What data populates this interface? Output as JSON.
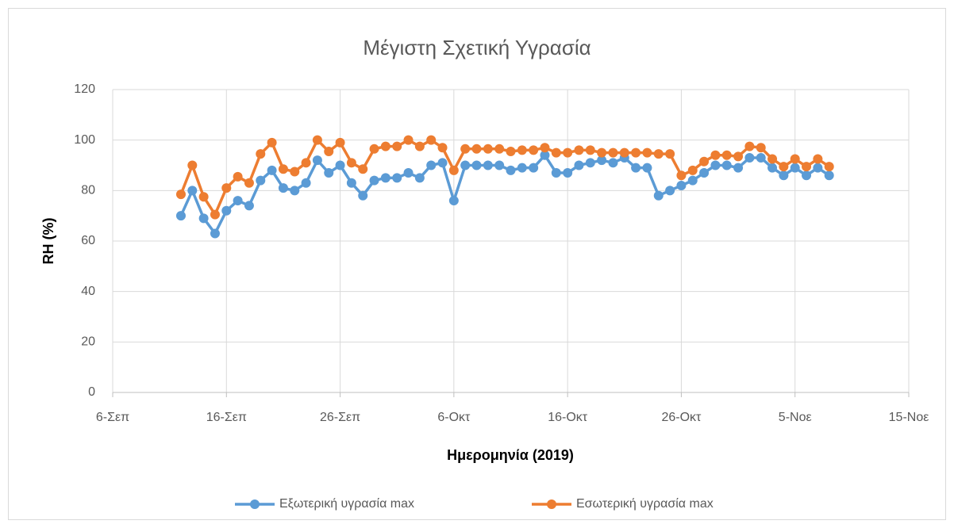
{
  "chart_data": {
    "type": "line",
    "title": "Μέγιστη Σχετική Υγρασία",
    "xlabel": "Ημερομηνία (2019)",
    "ylabel": "RH (%)",
    "x": [
      "2019-09-12",
      "2019-09-13",
      "2019-09-14",
      "2019-09-15",
      "2019-09-16",
      "2019-09-17",
      "2019-09-18",
      "2019-09-19",
      "2019-09-20",
      "2019-09-21",
      "2019-09-22",
      "2019-09-23",
      "2019-09-24",
      "2019-09-25",
      "2019-09-26",
      "2019-09-27",
      "2019-09-28",
      "2019-09-29",
      "2019-09-30",
      "2019-10-01",
      "2019-10-02",
      "2019-10-03",
      "2019-10-04",
      "2019-10-05",
      "2019-10-06",
      "2019-10-07",
      "2019-10-08",
      "2019-10-09",
      "2019-10-10",
      "2019-10-11",
      "2019-10-12",
      "2019-10-13",
      "2019-10-14",
      "2019-10-15",
      "2019-10-16",
      "2019-10-17",
      "2019-10-18",
      "2019-10-19",
      "2019-10-20",
      "2019-10-21",
      "2019-10-22",
      "2019-10-23",
      "2019-10-24",
      "2019-10-25",
      "2019-10-26",
      "2019-10-27",
      "2019-10-28",
      "2019-10-29",
      "2019-10-30",
      "2019-10-31",
      "2019-11-01",
      "2019-11-02",
      "2019-11-03",
      "2019-11-04",
      "2019-11-05",
      "2019-11-06",
      "2019-11-07",
      "2019-11-08"
    ],
    "series": [
      {
        "name": "Εξωτερική υγρασία max",
        "color": "#5b9bd5",
        "values": [
          70,
          80,
          69,
          63,
          72,
          76,
          74,
          84,
          88,
          81,
          80,
          83,
          92,
          87,
          90,
          83,
          78,
          84,
          85,
          85,
          87,
          85,
          90,
          91,
          76,
          90,
          90,
          90,
          90,
          88,
          89,
          89,
          94,
          87,
          87,
          90,
          91,
          92,
          91,
          93,
          89,
          89,
          78,
          80,
          82,
          84,
          87,
          90,
          90,
          89,
          93,
          93,
          89,
          86,
          89,
          86,
          89,
          86
        ]
      },
      {
        "name": "Εσωτερική υγρασία max",
        "color": "#ed7d31",
        "values": [
          78.5,
          90,
          77.5,
          70.5,
          81,
          85.5,
          83,
          94.5,
          99,
          88.5,
          87.5,
          91,
          100,
          95.5,
          99,
          91,
          88.5,
          96.5,
          97.5,
          97.5,
          100,
          97.5,
          100,
          97,
          88,
          96.5,
          96.5,
          96.5,
          96.5,
          95.5,
          96,
          96,
          97,
          95,
          95,
          96,
          96,
          95,
          95,
          95,
          95,
          95,
          94.5,
          94.5,
          86,
          88,
          91.5,
          94,
          94,
          93.5,
          97.5,
          97,
          92.5,
          89.5,
          92.5,
          89.5,
          92.5,
          89.5
        ]
      }
    ],
    "xlim": [
      "2019-09-06",
      "2019-11-15"
    ],
    "xticks": [
      {
        "value": "2019-09-06",
        "label": "6-Σεπ"
      },
      {
        "value": "2019-09-16",
        "label": "16-Σεπ"
      },
      {
        "value": "2019-09-26",
        "label": "26-Σεπ"
      },
      {
        "value": "2019-10-06",
        "label": "6-Οκτ"
      },
      {
        "value": "2019-10-16",
        "label": "16-Οκτ"
      },
      {
        "value": "2019-10-26",
        "label": "26-Οκτ"
      },
      {
        "value": "2019-11-05",
        "label": "5-Νοε"
      },
      {
        "value": "2019-11-15",
        "label": "15-Νοε"
      }
    ],
    "ylim": [
      0,
      120
    ],
    "yticks": [
      0,
      20,
      40,
      60,
      80,
      100,
      120
    ],
    "grid": true,
    "legend": "bottom"
  }
}
